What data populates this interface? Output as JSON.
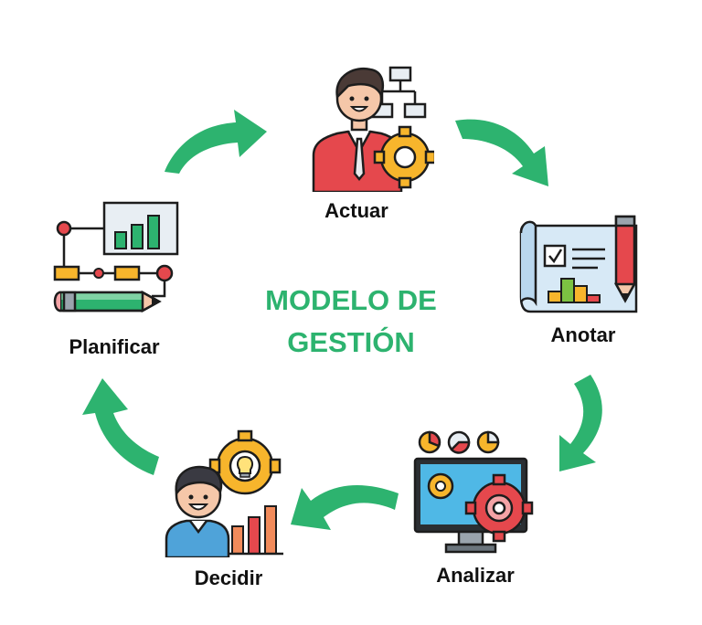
{
  "title": {
    "line1": "MODELO DE",
    "line2": "GESTIÓN",
    "color": "#2db36f"
  },
  "arrow_color": "#2db36f",
  "steps": [
    {
      "label": "Actuar",
      "icon": "business-person-with-org-chart-and-gear-icon"
    },
    {
      "label": "Anotar",
      "icon": "blueprint-chart-and-pencil-icon"
    },
    {
      "label": "Analizar",
      "icon": "monitor-with-gear-and-pie-charts-icon"
    },
    {
      "label": "Decidir",
      "icon": "smiling-person-with-lightbulb-gear-and-bar-chart-icon"
    },
    {
      "label": "Planificar",
      "icon": "planning-board-with-flow-and-pencil-icon"
    }
  ]
}
